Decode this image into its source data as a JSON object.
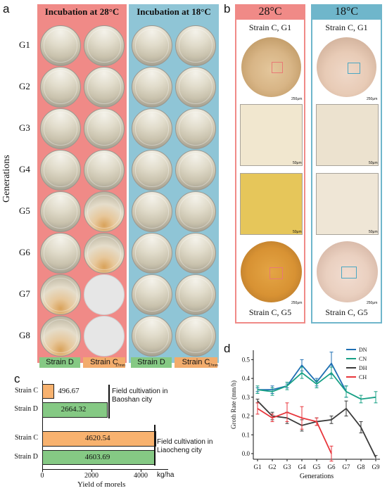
{
  "panel_a": {
    "letter": "a",
    "header_28": "Incubation at 28°C",
    "header_18": "Incubation at 18°C",
    "ylabel": "Generations",
    "generations": [
      "G1",
      "G2",
      "G3",
      "G4",
      "G5",
      "G6",
      "G7",
      "G8"
    ],
    "strain_labels": [
      "Strain D",
      "Strain C",
      "Strain D",
      "Strain C"
    ],
    "scale_bar": "17mm",
    "colors": {
      "warm_panel": "#f08a87",
      "cool_panel": "#8fc5d6",
      "strain_d": "#85c984",
      "strain_c": "#f2ac6c"
    }
  },
  "panel_b": {
    "letter": "b",
    "title_28": "28°C",
    "title_18": "18°C",
    "label_top": "Strain C, G1",
    "label_bottom": "Strain C, G5",
    "scale_dish": "250μm",
    "scale_micro": "50μm",
    "colors": {
      "warm": "#f08a87",
      "cool": "#6fb6cb"
    }
  },
  "panel_c": {
    "letter": "c",
    "xlabel": "Yield of morels",
    "unit": "kg/ha",
    "note_baoshan": "Field cultivation in Baoshan city",
    "note_liaocheng": "Field cultivation in Liaocheng city",
    "colors": {
      "strain_c": "#f8b26f",
      "strain_d": "#85c984"
    }
  },
  "panel_d": {
    "letter": "d",
    "colors": {
      "DN": "#1f6fb3",
      "CN": "#17a085",
      "DH": "#3a3a3a",
      "CH": "#e8363c"
    }
  },
  "chart_data": [
    {
      "type": "bar",
      "orientation": "horizontal",
      "categories": [
        "Strain C",
        "Strain D",
        "Strain C",
        "Strain D"
      ],
      "values": [
        496.67,
        2664.32,
        4620.54,
        4603.69
      ],
      "xlabel": "Yield of morels",
      "unit": "kg/ha",
      "xlim": [
        0,
        5000
      ],
      "xticks": [
        "0",
        "2000",
        "4000"
      ]
    },
    {
      "type": "line",
      "xlabel": "Generations",
      "ylabel": "Groth Rate (mm/h)",
      "categories": [
        "G1",
        "G2",
        "G3",
        "G4",
        "G5",
        "G6",
        "G7",
        "G8",
        "G9"
      ],
      "ylim": [
        0,
        0.5
      ],
      "yticks": [
        "0.0",
        "0.1",
        "0.2",
        "0.3",
        "0.4",
        "0.5"
      ],
      "legend_position": "top-right",
      "series": [
        {
          "name": "DN",
          "values": [
            0.34,
            0.34,
            0.36,
            0.47,
            0.38,
            0.48,
            0.33,
            null,
            null
          ],
          "err": [
            0.01,
            0.02,
            0.01,
            0.03,
            0.02,
            0.06,
            0.03,
            null,
            null
          ]
        },
        {
          "name": "CN",
          "values": [
            0.34,
            0.33,
            0.36,
            0.43,
            0.37,
            0.43,
            0.33,
            0.29,
            0.3
          ],
          "err": [
            0.02,
            0.02,
            0.02,
            0.03,
            0.02,
            0.03,
            0.03,
            0.02,
            0.03
          ]
        },
        {
          "name": "DH",
          "values": [
            0.28,
            0.2,
            0.19,
            0.15,
            0.17,
            0.18,
            0.24,
            0.14,
            -0.02
          ],
          "err": [
            0.01,
            0.02,
            0.03,
            0.03,
            0.02,
            0.02,
            0.04,
            0.03,
            0.01
          ]
        },
        {
          "name": "CH",
          "values": [
            0.24,
            0.19,
            0.22,
            0.19,
            0.17,
            0.0,
            null,
            null,
            null
          ],
          "err": [
            0.03,
            0.02,
            0.05,
            0.06,
            0.02,
            0.04,
            null,
            null,
            null
          ]
        }
      ]
    }
  ]
}
